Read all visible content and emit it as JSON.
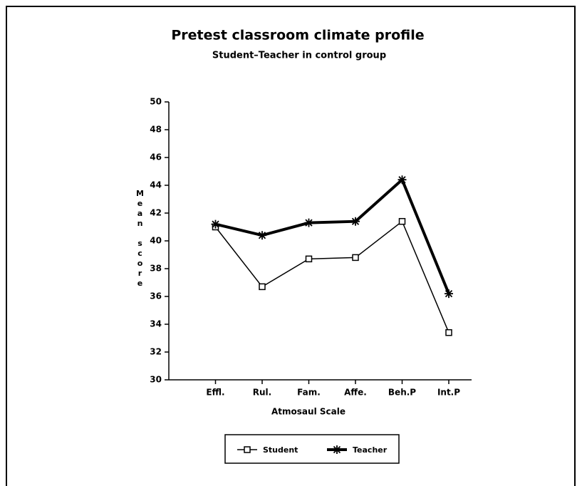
{
  "chart_data": {
    "type": "line",
    "title": "Pretest classroom climate profile",
    "subtitle": "Student–Teacher in control group",
    "y_label": "Mean score",
    "x_label": "Atmosaul Scale",
    "categories": [
      "Effl.",
      "Rul.",
      "Fam.",
      "Affe.",
      "Beh.P",
      "Int.P"
    ],
    "series": [
      {
        "name": "Student",
        "color": "#000000",
        "marker": "square",
        "values": [
          41.0,
          36.7,
          38.7,
          38.8,
          41.4,
          33.4
        ]
      },
      {
        "name": "Teacher",
        "color": "#000000",
        "marker": "asterisk",
        "values": [
          41.2,
          40.4,
          41.3,
          41.4,
          44.4,
          36.2
        ]
      }
    ],
    "ylim": [
      30,
      50
    ],
    "yticks": [
      30,
      32,
      34,
      36,
      38,
      40,
      42,
      44,
      46,
      48,
      50
    ],
    "legend": "bottom"
  }
}
